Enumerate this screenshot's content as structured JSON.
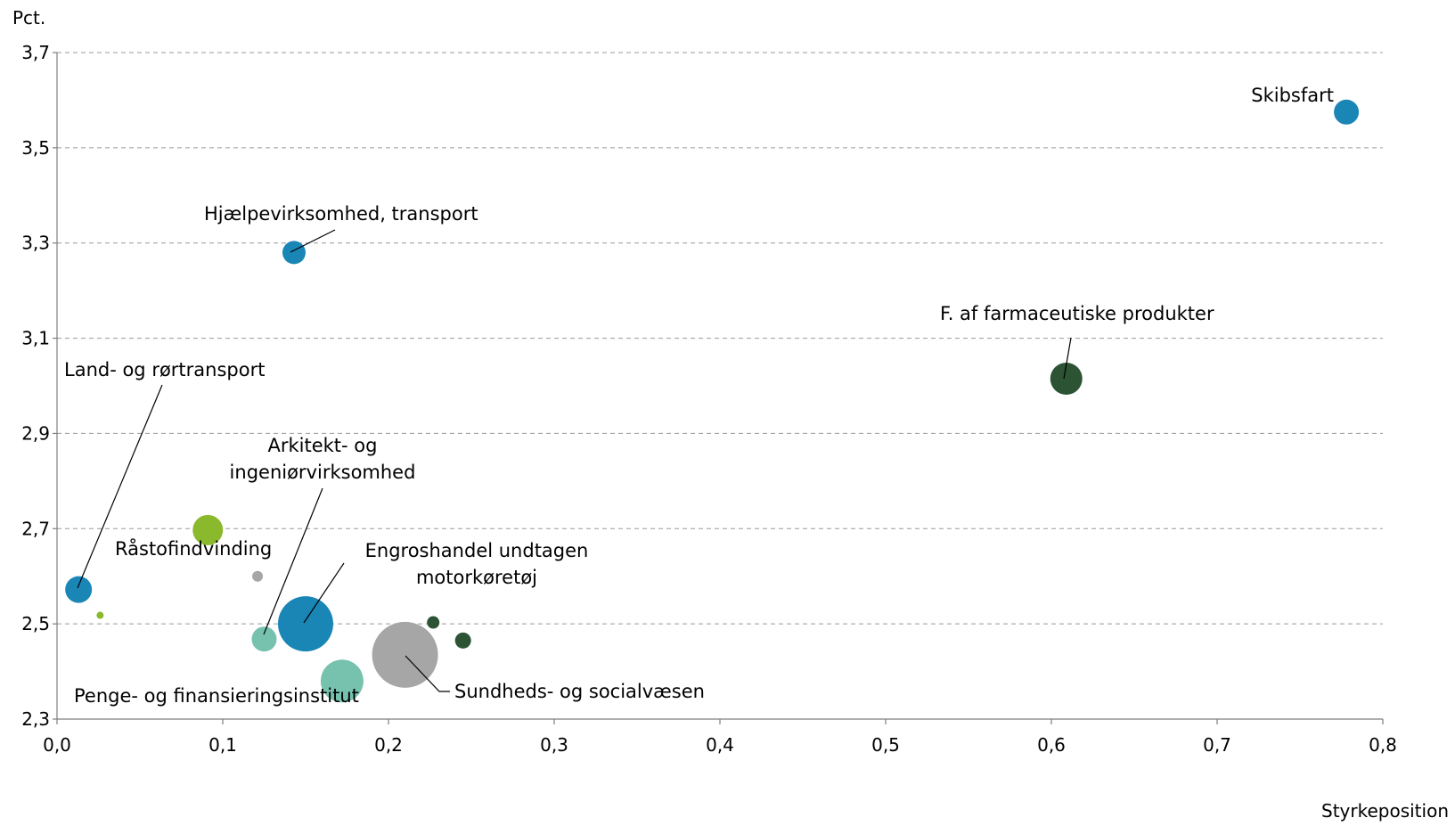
{
  "chart_data": {
    "type": "scatter",
    "title": "",
    "xlabel": "Styrkeposition",
    "ylabel": "Pct.",
    "xlim": [
      0,
      0.8
    ],
    "ylim": [
      2.3,
      3.7
    ],
    "x_ticks": [
      0,
      0.1,
      0.2,
      0.3,
      0.4,
      0.5,
      0.6,
      0.7,
      0.8
    ],
    "y_ticks": [
      2.3,
      2.5,
      2.7,
      2.9,
      3.1,
      3.3,
      3.5,
      3.7
    ],
    "x_tick_labels": [
      "0,0",
      "0,1",
      "0,2",
      "0,3",
      "0,4",
      "0,5",
      "0,6",
      "0,7",
      "0,8"
    ],
    "y_tick_labels": [
      "2,3",
      "2,5",
      "2,7",
      "2,9",
      "3,1",
      "3,3",
      "3,5",
      "3,7"
    ],
    "grid": "horizontal dashed",
    "colors": {
      "blue": "#1a86b6",
      "darkgreen": "#2b5334",
      "lightgreen": "#8ab92d",
      "teal": "#76c2ae",
      "grey": "#a6a6a6"
    },
    "points": [
      {
        "label": "Skibsfart",
        "x": 0.778,
        "y": 3.575,
        "r": 14,
        "color": "#1a86b6"
      },
      {
        "label": "Hjælpevirksomhed, transport",
        "x": 0.143,
        "y": 3.28,
        "r": 13,
        "color": "#1a86b6"
      },
      {
        "label": "F. af farmaceutiske produkter",
        "x": 0.609,
        "y": 3.015,
        "r": 18,
        "color": "#2b5334"
      },
      {
        "label": "Land- og rørtransport",
        "x": 0.013,
        "y": 2.572,
        "r": 15,
        "color": "#1a86b6"
      },
      {
        "label": "Råstofindvinding",
        "x": 0.091,
        "y": 2.697,
        "r": 17,
        "color": "#8ab92d"
      },
      {
        "label": "Arkitekt- og ingeniørvirksomhed",
        "x": 0.125,
        "y": 2.468,
        "r": 14,
        "color": "#76c2ae"
      },
      {
        "label": "Engroshandel undtagen motorkøretøj",
        "x": 0.15,
        "y": 2.5,
        "r": 31,
        "color": "#1a86b6"
      },
      {
        "label": "Penge- og finansieringsinstitut",
        "x": 0.172,
        "y": 2.38,
        "r": 24,
        "color": "#76c2ae"
      },
      {
        "label": "Sundheds- og socialvæsen",
        "x": 0.21,
        "y": 2.435,
        "r": 37,
        "color": "#a6a6a6"
      },
      {
        "label": "",
        "x": 0.121,
        "y": 2.6,
        "r": 6,
        "color": "#a6a6a6"
      },
      {
        "label": "",
        "x": 0.026,
        "y": 2.518,
        "r": 4,
        "color": "#8ab92d"
      },
      {
        "label": "",
        "x": 0.227,
        "y": 2.503,
        "r": 7,
        "color": "#2b5334"
      },
      {
        "label": "",
        "x": 0.245,
        "y": 2.465,
        "r": 9,
        "color": "#2b5334"
      }
    ]
  }
}
